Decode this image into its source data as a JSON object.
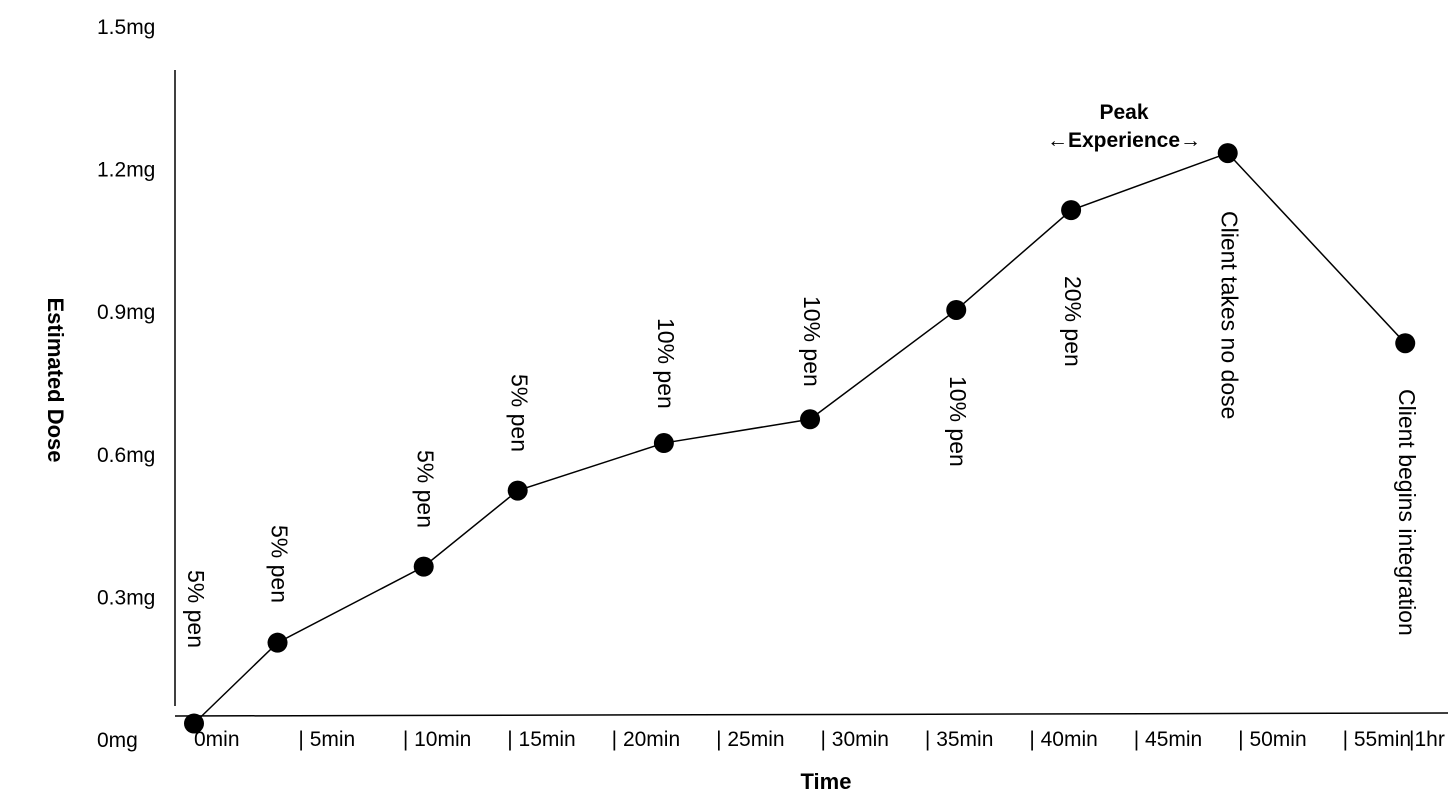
{
  "chart_data": {
    "type": "line",
    "title": "",
    "xlabel": "Time",
    "ylabel": "Estimated Dose",
    "y_ticks": [
      "0mg",
      "0.3mg",
      "0.6mg",
      "0.9mg",
      "1.2mg",
      "1.5mg"
    ],
    "x_ticks": [
      "0min",
      "| 5min",
      "| 10min",
      "| 15min",
      "| 20min",
      "| 25min",
      "| 30min",
      "| 35min",
      "| 40min",
      "| 45min",
      "| 50min",
      "| 55min",
      "|1hr"
    ],
    "ylim": [
      0,
      1.5
    ],
    "xlim": [
      0,
      60
    ],
    "grid": false,
    "series": [
      {
        "points": [
          {
            "x": 0,
            "y": 0.02
          },
          {
            "x": 4,
            "y": 0.19
          },
          {
            "x": 11,
            "y": 0.35
          },
          {
            "x": 15.5,
            "y": 0.51
          },
          {
            "x": 22.5,
            "y": 0.61
          },
          {
            "x": 29.5,
            "y": 0.66
          },
          {
            "x": 36.5,
            "y": 0.89
          },
          {
            "x": 42,
            "y": 1.1
          },
          {
            "x": 49.5,
            "y": 1.22
          },
          {
            "x": 58,
            "y": 0.82
          }
        ]
      }
    ],
    "annotations": [
      {
        "text": "5% pen",
        "x": 0,
        "y": 0.02
      },
      {
        "text": "5% pen",
        "x": 4,
        "y": 0.19
      },
      {
        "text": "5% pen",
        "x": 11,
        "y": 0.35
      },
      {
        "text": "5% pen",
        "x": 15.5,
        "y": 0.51
      },
      {
        "text": "10% pen",
        "x": 22.5,
        "y": 0.61
      },
      {
        "text": "10% pen",
        "x": 29.5,
        "y": 0.66
      },
      {
        "text": "10% pen",
        "x": 36.5,
        "y": 0.89
      },
      {
        "text": "20% pen",
        "x": 42,
        "y": 1.1
      },
      {
        "text": "Client takes no dose",
        "x": 49.5,
        "y": 1.22
      },
      {
        "text": "Client begins integration",
        "x": 58,
        "y": 0.82
      }
    ],
    "peak_label": {
      "line1": "Peak",
      "line2": "←Experience→"
    }
  }
}
